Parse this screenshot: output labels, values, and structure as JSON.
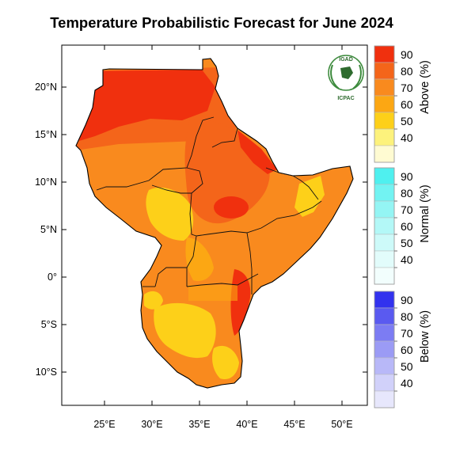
{
  "title": "Temperature Probabilistic Forecast for June 2024",
  "map": {
    "lat_ticks": [
      "20°N",
      "15°N",
      "10°N",
      "5°N",
      "0°",
      "5°S",
      "10°S"
    ],
    "lon_ticks": [
      "25°E",
      "30°E",
      "35°E",
      "40°E",
      "45°E",
      "50°E"
    ]
  },
  "logo": {
    "top_text": "IGAD",
    "bottom_text": "ICPAC"
  },
  "legend": {
    "above": {
      "title": "Above (%)",
      "labels": [
        "90",
        "80",
        "70",
        "60",
        "50",
        "40"
      ],
      "colors": [
        "#f0300e",
        "#f4651a",
        "#f98a1e",
        "#fca713",
        "#fdd019",
        "#fdf27c",
        "#fffbd2"
      ]
    },
    "normal": {
      "title": "Normal (%)",
      "labels": [
        "90",
        "80",
        "70",
        "60",
        "50",
        "40"
      ],
      "colors": [
        "#4ff0ef",
        "#72f3f2",
        "#94f5f4",
        "#b3f8f7",
        "#cdfaf9",
        "#e2fcfb",
        "#f2fefd"
      ]
    },
    "below": {
      "title": "Below (%)",
      "labels": [
        "90",
        "80",
        "70",
        "60",
        "50",
        "40"
      ],
      "colors": [
        "#3232ee",
        "#5a5af0",
        "#7c7cf3",
        "#9b9bf5",
        "#b8b8f8",
        "#d1d1fa",
        "#e7e7fc"
      ]
    }
  }
}
